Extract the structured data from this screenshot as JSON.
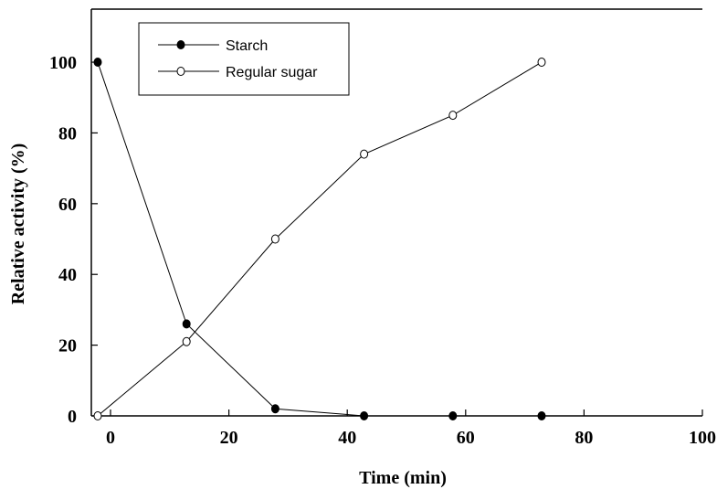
{
  "chart_data": {
    "type": "line",
    "xlabel": "Time (min)",
    "ylabel": "Relative activity (%)",
    "xlim": [
      0,
      100
    ],
    "ylim": [
      0,
      115
    ],
    "xticks": [
      0,
      20,
      40,
      60,
      80,
      100
    ],
    "yticks": [
      0,
      20,
      40,
      60,
      80,
      100
    ],
    "grid": false,
    "legend_position": "top-left",
    "series": [
      {
        "name": "Starch",
        "marker": "filled-circle",
        "x": [
          0,
          15,
          30,
          45,
          60,
          75
        ],
        "y": [
          100,
          26,
          2,
          0,
          0,
          0
        ]
      },
      {
        "name": "Regular sugar",
        "marker": "open-circle",
        "x": [
          0,
          15,
          30,
          45,
          60,
          75
        ],
        "y": [
          0,
          21,
          50,
          74,
          85,
          100
        ]
      }
    ]
  }
}
